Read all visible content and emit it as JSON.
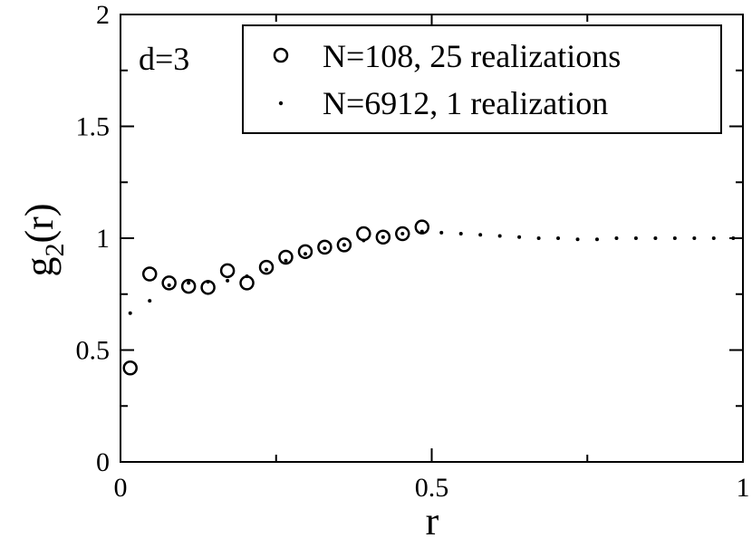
{
  "chart_data": {
    "type": "scatter",
    "xlim": [
      0,
      1
    ],
    "ylim": [
      0,
      2
    ],
    "xticks": [
      0,
      0.5,
      1
    ],
    "xtick_labels": [
      "0",
      "0.5",
      "1"
    ],
    "yticks": [
      0,
      0.5,
      1,
      1.5,
      2
    ],
    "ytick_labels": [
      "0",
      "0.5",
      "1",
      "1.5",
      "2"
    ],
    "xlabel": "r",
    "ylabel_base": "g",
    "ylabel_sub": "2",
    "ylabel_tail": "(r)",
    "annotation": "d=3",
    "legend_position": "top-right",
    "grid": false,
    "series": [
      {
        "name": "N=108, 25 realizations",
        "marker": "open-circle",
        "x": [
          0.0156,
          0.0469,
          0.0781,
          0.1094,
          0.1406,
          0.1719,
          0.2031,
          0.2344,
          0.2656,
          0.2969,
          0.3281,
          0.3594,
          0.3906,
          0.4219,
          0.4531,
          0.4844
        ],
        "y": [
          0.42,
          0.84,
          0.8,
          0.785,
          0.78,
          0.855,
          0.8,
          0.87,
          0.915,
          0.94,
          0.96,
          0.97,
          1.02,
          1.005,
          1.02,
          1.05
        ]
      },
      {
        "name": "N=6912, 1 realization",
        "marker": "dot",
        "x": [
          0.0156,
          0.0469,
          0.0781,
          0.1094,
          0.1406,
          0.1719,
          0.2031,
          0.2344,
          0.2656,
          0.2969,
          0.3281,
          0.3594,
          0.3906,
          0.4219,
          0.4531,
          0.4844,
          0.5156,
          0.5469,
          0.5781,
          0.6094,
          0.6406,
          0.6719,
          0.7031,
          0.7344,
          0.7656,
          0.7969,
          0.8281,
          0.8594,
          0.8906,
          0.9219,
          0.9531,
          0.9844
        ],
        "y": [
          0.665,
          0.72,
          0.79,
          0.8,
          0.805,
          0.81,
          0.83,
          0.86,
          0.9,
          0.93,
          0.955,
          0.97,
          0.99,
          1.005,
          1.02,
          1.03,
          1.025,
          1.02,
          1.015,
          1.01,
          1.005,
          1.0,
          1.0,
          0.995,
          0.995,
          1.0,
          1.0,
          1.0,
          1.0,
          1.0,
          1.0,
          1.0
        ]
      }
    ]
  }
}
